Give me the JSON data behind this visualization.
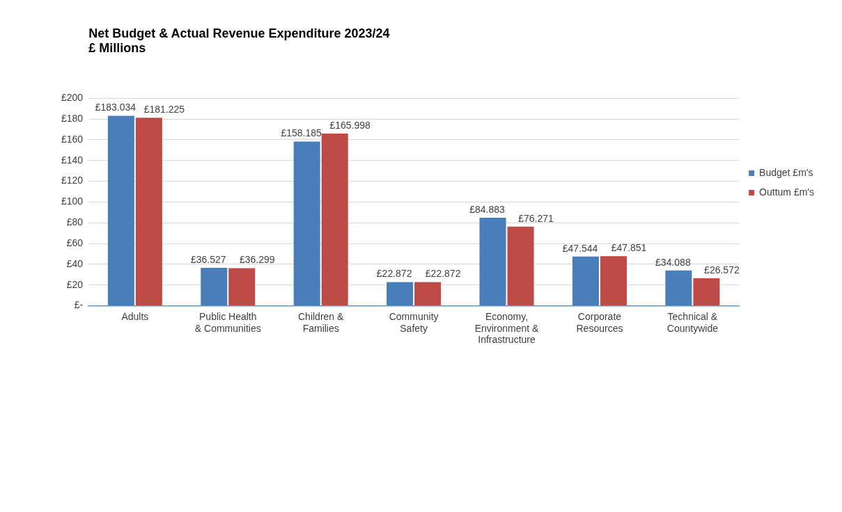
{
  "chart_data": {
    "type": "bar",
    "title": [
      "Net Budget & Actual Revenue Expenditure 2023/24",
      "£ Millions"
    ],
    "categories": [
      "Adults",
      "Public Health & Communities",
      "Children & Families",
      "Community Safety",
      "Economy, Environment & Infrastructure",
      "Corporate Resources",
      "Technical & Countywide"
    ],
    "series": [
      {
        "name": "Budget £m's",
        "color": "#4a7ebb",
        "values": [
          183.034,
          36.527,
          158.185,
          22.872,
          84.883,
          47.544,
          34.088
        ],
        "value_labels": [
          "£183.034",
          "£36.527",
          "£158.185",
          "£22.872",
          "£84.883",
          "£47.544",
          "£34.088"
        ]
      },
      {
        "name": "Outtum £m's",
        "color": "#be4b48",
        "values": [
          181.225,
          36.299,
          165.998,
          22.872,
          76.271,
          47.851,
          26.572
        ],
        "value_labels": [
          "£181.225",
          "£36.299",
          "£165.998",
          "£22.872",
          "£76.271",
          "£47.851",
          "£26.572"
        ]
      }
    ],
    "ylim": [
      0,
      200
    ],
    "yticks": [
      {
        "value": 0,
        "label": "£-"
      },
      {
        "value": 20,
        "label": "£20"
      },
      {
        "value": 40,
        "label": "£40"
      },
      {
        "value": 60,
        "label": "£60"
      },
      {
        "value": 80,
        "label": "£80"
      },
      {
        "value": 100,
        "label": "£100"
      },
      {
        "value": 120,
        "label": "£120"
      },
      {
        "value": 140,
        "label": "£140"
      },
      {
        "value": 160,
        "label": "£160"
      },
      {
        "value": 180,
        "label": "£180"
      },
      {
        "value": 200,
        "label": "£200"
      }
    ],
    "grid": "y",
    "legend": "right"
  }
}
